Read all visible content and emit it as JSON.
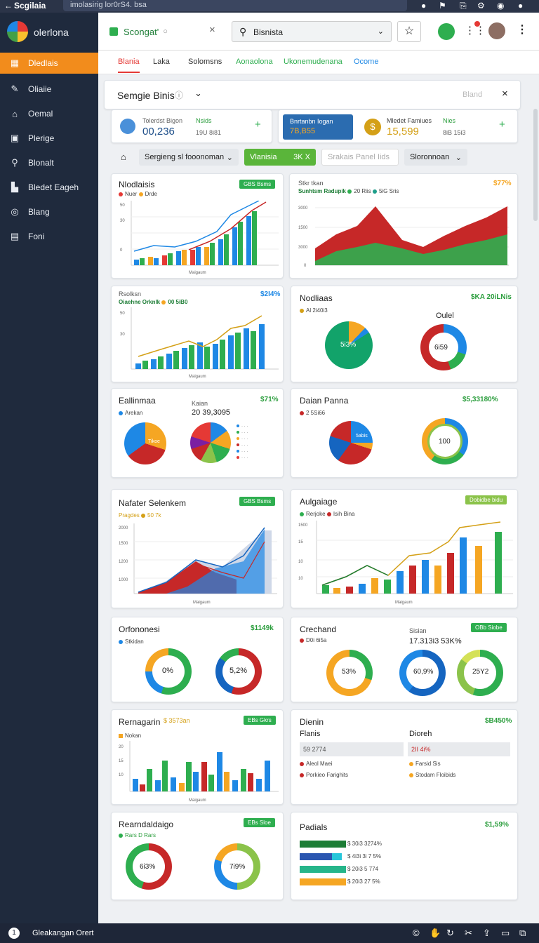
{
  "browser": {
    "tab_title": "Scgilaia",
    "url": "imolasirig lor0rS4. bsa"
  },
  "app": {
    "name": "olerlona"
  },
  "sidebar": {
    "items": [
      {
        "label": "Dledlais",
        "icon": "dashboard-icon"
      },
      {
        "label": "Oliaiie",
        "icon": "wrench-icon"
      },
      {
        "label": "Oemal",
        "icon": "home-icon"
      },
      {
        "label": "Plerige",
        "icon": "square-icon"
      },
      {
        "label": "Blonalt",
        "icon": "search-icon"
      },
      {
        "label": "Bledet Eageh",
        "icon": "chart-icon"
      },
      {
        "label": "Blang",
        "icon": "target-icon"
      },
      {
        "label": "Foni",
        "icon": "folder-icon"
      }
    ]
  },
  "header": {
    "tab_label": "Scongat'",
    "search_value": "Bisnista"
  },
  "tabs": [
    "Blania",
    "Laka",
    "Solomsns",
    "Aonaolona",
    "Ukonemudenana",
    "Ocome"
  ],
  "panel": {
    "title": "Semgie Binis",
    "right_label": "Bland"
  },
  "stats": [
    {
      "label": "Tolerdst Bigon",
      "value": "00,236",
      "sub_label": "Nsids",
      "sub_value": "19U 8i81"
    },
    {
      "label": "Bnrtanbn Iogan",
      "value": "7B,B55"
    },
    {
      "label": "Mledet Famiues",
      "value": "15,599",
      "sub_label": "Nies",
      "sub_value": "8iB 15i3"
    }
  ],
  "filters": {
    "f1": "Sergieng sl fooonoman",
    "f2": "Vlanisia",
    "f2_sub": "3K X",
    "f3": "Srakais Panel Iids",
    "f4": "Sloronnoan"
  },
  "cards": {
    "c1": {
      "title": "Nlodlaisis",
      "badge": "GBS Bsms",
      "legend": [
        "Nuer",
        "Drde"
      ]
    },
    "c2": {
      "title": "Stkr tkan",
      "subtitle": "Sunhtsm Radupik",
      "legend": [
        "20 Riis",
        "5iG Sris"
      ],
      "value": "$77%"
    },
    "c3": {
      "title": "Rsolksn",
      "subtitle": "Oiaehne Orknlk",
      "legend_extra": "00 5iB0",
      "value": "$2I4%"
    },
    "c4": {
      "title": "Nodliaas",
      "value": "$KA 20iLNis",
      "legend": "Al 2i40i3",
      "sub": "Oulel",
      "pie_label": "5i3%",
      "donut_label": "6i59"
    },
    "c5": {
      "title": "Eallinmaa",
      "value": "$71%",
      "legend": "Arekan",
      "sub1": "Kaian",
      "sub2": "20 39,3095",
      "pie_label": "Tikoe"
    },
    "c6": {
      "title": "Daian Panna",
      "value": "$5,33180%",
      "legend": "2 5Si66",
      "pie_label": "5abis",
      "donut_label": "100"
    },
    "c7": {
      "title": "Nafater Selenkem",
      "badge": "GBS Bsms",
      "legend": [
        "Pragdes",
        "50 7k"
      ]
    },
    "c8": {
      "title": "Aulgaiage",
      "badge": "Dobidbe bidu",
      "legend": [
        "Rerjoke",
        "Isih Bina"
      ]
    },
    "c9": {
      "title": "Orfononesi",
      "value": "$1149k",
      "legend": "Stkidan",
      "d1": "0%",
      "d2": "5,2%"
    },
    "c10": {
      "title": "Crechand",
      "badge": "OBb Siobe",
      "legend": "D0i 6i5a",
      "sub1": "Sisian",
      "sub2": "17.313i3 53K%",
      "d1": "53%",
      "d2": "60,9%",
      "d3": "25Y2"
    },
    "c11": {
      "title": "Rernagarin",
      "title_value": "$ 3573an",
      "badge": "EBs Gkrs",
      "legend": "Nokan"
    },
    "c12": {
      "title": "Dienin",
      "value": "$B450%",
      "col1": "Flanis",
      "col2": "Dioreh",
      "row1": "59 2774",
      "row2": "2II 4i%",
      "l1": "Aleol Maei",
      "l2": "Farsid Sis",
      "l3": "Porkieo Farighits",
      "l4": "Stodam Floibids"
    },
    "c13": {
      "title": "Rearndaldaigo",
      "badge": "EBs Sloe",
      "legend": "Rars D Rars",
      "d1": "6i3%",
      "d2": "7i9%"
    },
    "c14": {
      "title": "Padials",
      "value": "$1,59%",
      "bars": [
        "$ 30i3 3274%",
        "$ 4i3i 3i 7 5%",
        "$ 20i3 5 774",
        "$ 20i3 27 5%"
      ]
    }
  },
  "chart_data": [
    {
      "type": "bar",
      "title": "Nlodlaisis",
      "series": [
        {
          "name": "Nuer",
          "values": [
            5,
            7,
            6,
            8,
            9,
            10,
            11,
            15,
            18,
            20,
            22,
            24,
            26,
            28,
            30
          ]
        },
        {
          "name": "Drde",
          "values": [
            3,
            4,
            5,
            6,
            7,
            8,
            10,
            12,
            15,
            18,
            20,
            24,
            26,
            30,
            34
          ]
        }
      ]
    },
    {
      "type": "area",
      "title": "Stkr tkan",
      "series": [
        {
          "name": "20 Riis",
          "values": [
            60,
            70,
            63,
            80,
            58,
            52,
            48,
            60,
            65,
            75
          ]
        },
        {
          "name": "5iG Sris",
          "values": [
            20,
            35,
            40,
            30,
            25,
            38,
            30,
            35,
            40,
            45
          ]
        }
      ]
    },
    {
      "type": "pie",
      "title": "Nodliaas",
      "values": [
        85,
        15
      ]
    }
  ],
  "status": {
    "label": "Gleakangan Orert"
  }
}
